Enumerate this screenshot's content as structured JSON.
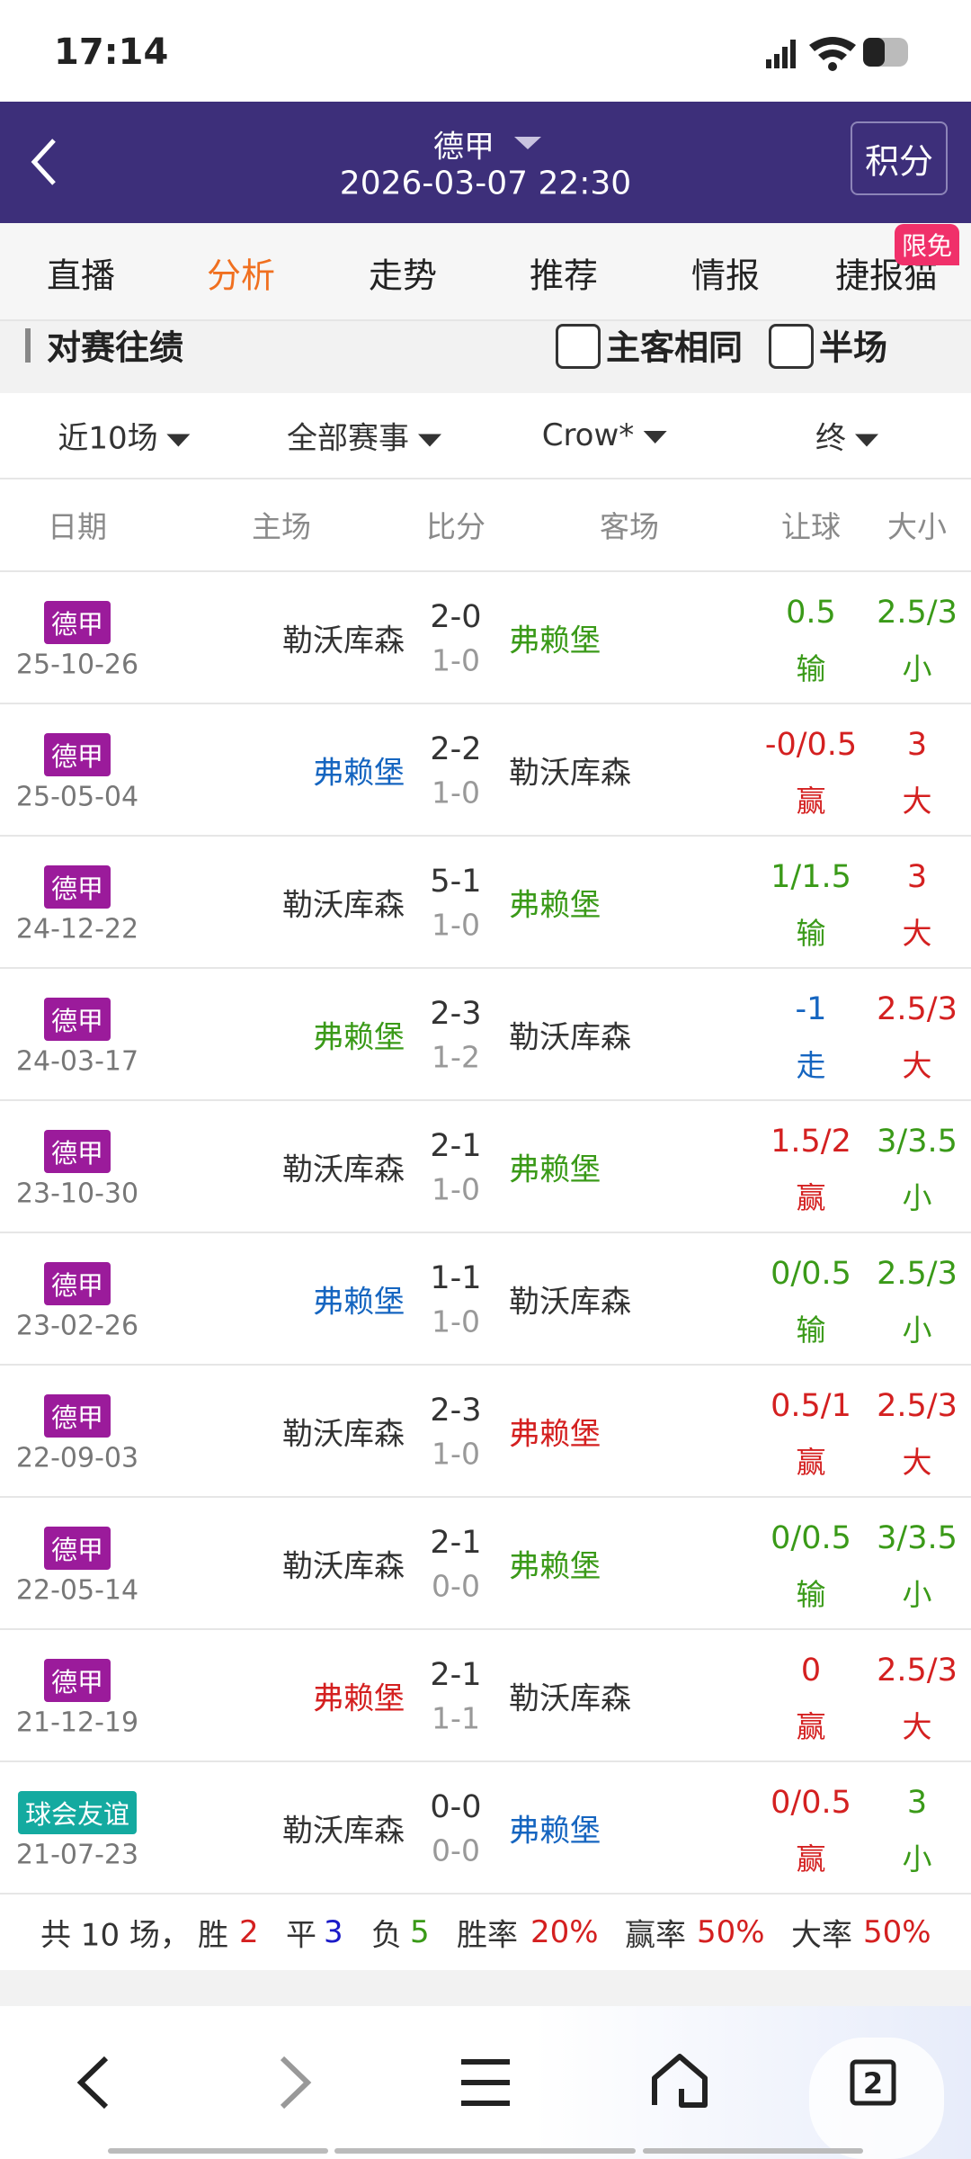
{
  "status": {
    "time": "17:14"
  },
  "header": {
    "league": "德甲",
    "datetime": "2026-03-07 22:30",
    "button": "积分"
  },
  "tabs": {
    "items": [
      "直播",
      "分析",
      "走势",
      "推荐",
      "情报",
      "捷报猫"
    ],
    "active": 1,
    "badge": "限免"
  },
  "section": {
    "title": "对赛往绩",
    "options": [
      "主客相同",
      "半场"
    ]
  },
  "filters": [
    "近10场",
    "全部赛事",
    "Crow*",
    "终"
  ],
  "table": {
    "columns": [
      "日期",
      "主场",
      "比分",
      "客场",
      "让球",
      "大小"
    ],
    "rows": [
      {
        "league": "德甲",
        "league_color": "#9b1b9b",
        "date": "25-10-26",
        "home": "勒沃库森",
        "home_color": "#333333",
        "score": "2-0",
        "half": "1-0",
        "away": "弗赖堡",
        "away_color": "#3a9a18",
        "handicap": "0.5",
        "handicap_result": "输",
        "handicap_color": "#3a9a18",
        "ou": "2.5/3",
        "ou_result": "小",
        "ou_color": "#3a9a18"
      },
      {
        "league": "德甲",
        "league_color": "#9b1b9b",
        "date": "25-05-04",
        "home": "弗赖堡",
        "home_color": "#1565c0",
        "score": "2-2",
        "half": "1-0",
        "away": "勒沃库森",
        "away_color": "#333333",
        "handicap": "-0/0.5",
        "handicap_result": "赢",
        "handicap_color": "#d42020",
        "ou": "3",
        "ou_result": "大",
        "ou_color": "#d42020"
      },
      {
        "league": "德甲",
        "league_color": "#9b1b9b",
        "date": "24-12-22",
        "home": "勒沃库森",
        "home_color": "#333333",
        "score": "5-1",
        "half": "1-0",
        "away": "弗赖堡",
        "away_color": "#3a9a18",
        "handicap": "1/1.5",
        "handicap_result": "输",
        "handicap_color": "#3a9a18",
        "ou": "3",
        "ou_result": "大",
        "ou_color": "#d42020"
      },
      {
        "league": "德甲",
        "league_color": "#9b1b9b",
        "date": "24-03-17",
        "home": "弗赖堡",
        "home_color": "#3a9a18",
        "score": "2-3",
        "half": "1-2",
        "away": "勒沃库森",
        "away_color": "#333333",
        "handicap": "-1",
        "handicap_result": "走",
        "handicap_color": "#1565c0",
        "ou": "2.5/3",
        "ou_result": "大",
        "ou_color": "#d42020"
      },
      {
        "league": "德甲",
        "league_color": "#9b1b9b",
        "date": "23-10-30",
        "home": "勒沃库森",
        "home_color": "#333333",
        "score": "2-1",
        "half": "1-0",
        "away": "弗赖堡",
        "away_color": "#3a9a18",
        "handicap": "1.5/2",
        "handicap_result": "赢",
        "handicap_color": "#d42020",
        "ou": "3/3.5",
        "ou_result": "小",
        "ou_color": "#3a9a18"
      },
      {
        "league": "德甲",
        "league_color": "#9b1b9b",
        "date": "23-02-26",
        "home": "弗赖堡",
        "home_color": "#1565c0",
        "score": "1-1",
        "half": "1-0",
        "away": "勒沃库森",
        "away_color": "#333333",
        "handicap": "0/0.5",
        "handicap_result": "输",
        "handicap_color": "#3a9a18",
        "ou": "2.5/3",
        "ou_result": "小",
        "ou_color": "#3a9a18"
      },
      {
        "league": "德甲",
        "league_color": "#9b1b9b",
        "date": "22-09-03",
        "home": "勒沃库森",
        "home_color": "#333333",
        "score": "2-3",
        "half": "1-0",
        "away": "弗赖堡",
        "away_color": "#d42020",
        "handicap": "0.5/1",
        "handicap_result": "赢",
        "handicap_color": "#d42020",
        "ou": "2.5/3",
        "ou_result": "大",
        "ou_color": "#d42020"
      },
      {
        "league": "德甲",
        "league_color": "#9b1b9b",
        "date": "22-05-14",
        "home": "勒沃库森",
        "home_color": "#333333",
        "score": "2-1",
        "half": "0-0",
        "away": "弗赖堡",
        "away_color": "#3a9a18",
        "handicap": "0/0.5",
        "handicap_result": "输",
        "handicap_color": "#3a9a18",
        "ou": "3/3.5",
        "ou_result": "小",
        "ou_color": "#3a9a18"
      },
      {
        "league": "德甲",
        "league_color": "#9b1b9b",
        "date": "21-12-19",
        "home": "弗赖堡",
        "home_color": "#d42020",
        "score": "2-1",
        "half": "1-1",
        "away": "勒沃库森",
        "away_color": "#333333",
        "handicap": "0",
        "handicap_result": "赢",
        "handicap_color": "#d42020",
        "ou": "2.5/3",
        "ou_result": "大",
        "ou_color": "#d42020"
      },
      {
        "league": "球会友谊",
        "league_color": "#14aaa0",
        "date": "21-07-23",
        "home": "勒沃库森",
        "home_color": "#333333",
        "score": "0-0",
        "half": "0-0",
        "away": "弗赖堡",
        "away_color": "#1565c0",
        "handicap": "0/0.5",
        "handicap_result": "赢",
        "handicap_color": "#d42020",
        "ou": "3",
        "ou_result": "小",
        "ou_color": "#3a9a18"
      }
    ]
  },
  "summary": [
    {
      "text": "共 10 场，",
      "color": "#333333"
    },
    {
      "text": "胜",
      "color": "#333333"
    },
    {
      "text": "2",
      "color": "#d42020"
    },
    {
      "text": "平",
      "color": "#333333"
    },
    {
      "text": "3",
      "color": "#1a1ac8"
    },
    {
      "text": "负",
      "color": "#333333"
    },
    {
      "text": "5",
      "color": "#3a9a18"
    },
    {
      "text": "胜率",
      "color": "#333333"
    },
    {
      "text": "20%",
      "color": "#d42020"
    },
    {
      "text": "赢率",
      "color": "#333333"
    },
    {
      "text": "50%",
      "color": "#d42020"
    },
    {
      "text": "大率",
      "color": "#333333"
    },
    {
      "text": "50%",
      "color": "#d42020"
    }
  ],
  "nav": {
    "tab_count": "2"
  }
}
